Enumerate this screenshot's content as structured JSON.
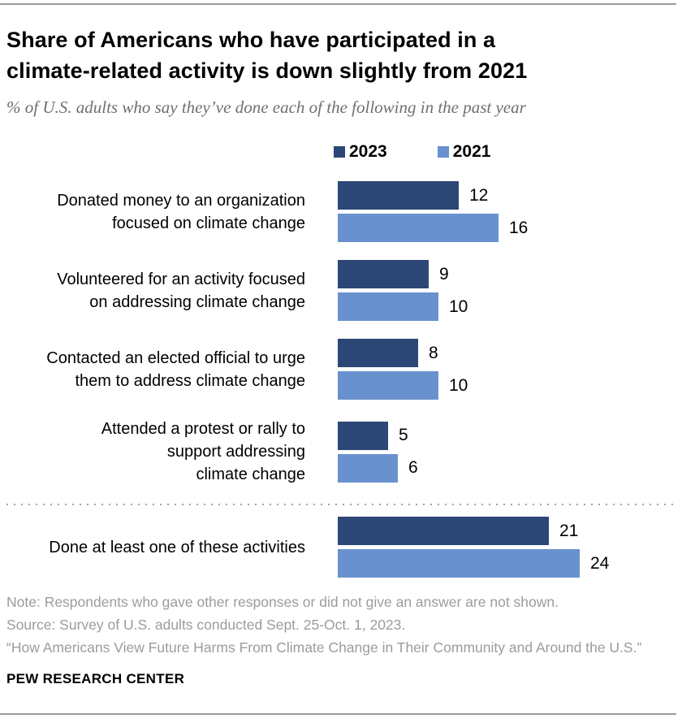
{
  "header": {
    "title": "Share of Americans who have participated in a\nclimate-related activity is down slightly from 2021",
    "subtitle": "% of U.S. adults who say they’ve done each of the following in the past year"
  },
  "chart_data": {
    "type": "bar",
    "orientation": "horizontal",
    "unit": "% of U.S. adults",
    "xlim": [
      0,
      24
    ],
    "grid": false,
    "legend_position": "top",
    "value_labels": "end-of-bar",
    "series": [
      {
        "name": "2023",
        "color": "#2C4775"
      },
      {
        "name": "2021",
        "color": "#6991CE"
      }
    ],
    "categories": [
      "Donated money to an organization focused on climate change",
      "Volunteered for an activity focused on addressing climate change",
      "Contacted an elected official to urge them to address climate change",
      "Attended a protest or rally to support addressing climate change",
      "Done at least one of these activities"
    ],
    "rows": [
      {
        "label": "Donated money to an organization\nfocused on climate change",
        "values": [
          12,
          16
        ]
      },
      {
        "label": "Volunteered for an activity focused\non addressing climate change",
        "values": [
          9,
          10
        ]
      },
      {
        "label": "Contacted an elected official to urge\nthem to address climate change",
        "values": [
          8,
          10
        ]
      },
      {
        "label": "Attended a protest or rally to\nsupport addressing\nclimate change",
        "values": [
          5,
          6
        ]
      },
      {
        "label": "Done at least one of these activities",
        "values": [
          21,
          24
        ]
      }
    ]
  },
  "footer": {
    "note": "Note: Respondents who gave other responses or did not give an answer are not shown.",
    "source": "Source: Survey of U.S. adults conducted Sept. 25-Oct. 1, 2023.",
    "report_title": "“How Americans View Future Harms From Climate Change in Their Community and Around the U.S.”",
    "brand": "PEW RESEARCH CENTER"
  }
}
